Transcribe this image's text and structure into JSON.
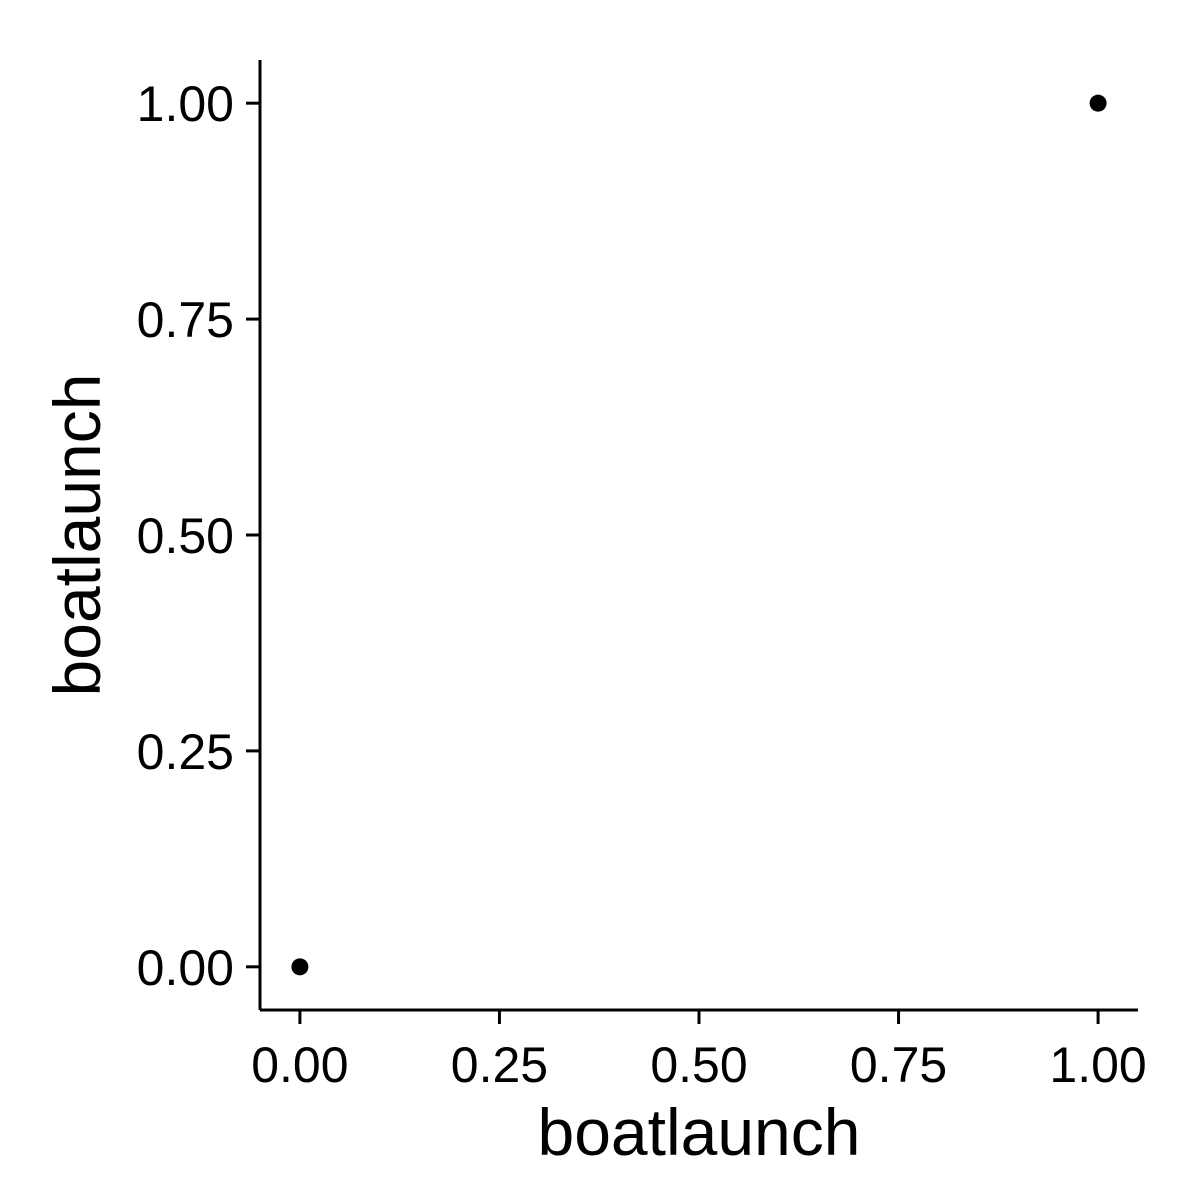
{
  "chart_data": {
    "type": "scatter",
    "title": "",
    "xlabel": "boatlaunch",
    "ylabel": "boatlaunch",
    "xlim": [
      -0.05,
      1.05
    ],
    "ylim": [
      -0.05,
      1.05
    ],
    "x_ticks": [
      0,
      0.25,
      0.5,
      0.75,
      1
    ],
    "x_tick_labels": [
      "0.00",
      "0.25",
      "0.50",
      "0.75",
      "1.00"
    ],
    "y_ticks": [
      0,
      0.25,
      0.5,
      0.75,
      1
    ],
    "y_tick_labels": [
      "0.00",
      "0.25",
      "0.50",
      "0.75",
      "1.00"
    ],
    "grid": false,
    "legend": "none",
    "points": [
      {
        "x": 0,
        "y": 0
      },
      {
        "x": 1,
        "y": 1
      }
    ],
    "point_color": "#000000",
    "axis_color": "#000000"
  }
}
